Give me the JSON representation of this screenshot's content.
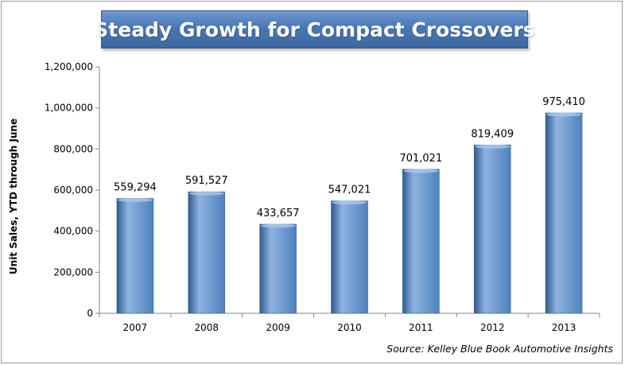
{
  "chart_data": {
    "type": "bar",
    "title": "Steady Growth for Compact Crossovers",
    "xlabel": "",
    "ylabel": "Unit Sales, YTD through June",
    "categories": [
      "2007",
      "2008",
      "2009",
      "2010",
      "2011",
      "2012",
      "2013"
    ],
    "values": [
      559294,
      591527,
      433657,
      547021,
      701021,
      819409,
      975410
    ],
    "data_labels": [
      "559,294",
      "591,527",
      "433,657",
      "547,021",
      "701,021",
      "819,409",
      "975,410"
    ],
    "ylim": [
      0,
      1200000
    ],
    "yticks": [
      0,
      200000,
      400000,
      600000,
      800000,
      1000000,
      1200000
    ],
    "ytick_labels": [
      "0",
      "200,000",
      "400,000",
      "600,000",
      "800,000",
      "1,000,000",
      "1,200,000"
    ],
    "grid": false,
    "legend": "none",
    "source": "Source: Kelley Blue Book Automotive Insights",
    "colors": {
      "bar": "#4f81bd",
      "bar_dark": "#2f5a8f",
      "bar_light": "#8fb3e0",
      "title_bg": "#4a77b5"
    }
  }
}
